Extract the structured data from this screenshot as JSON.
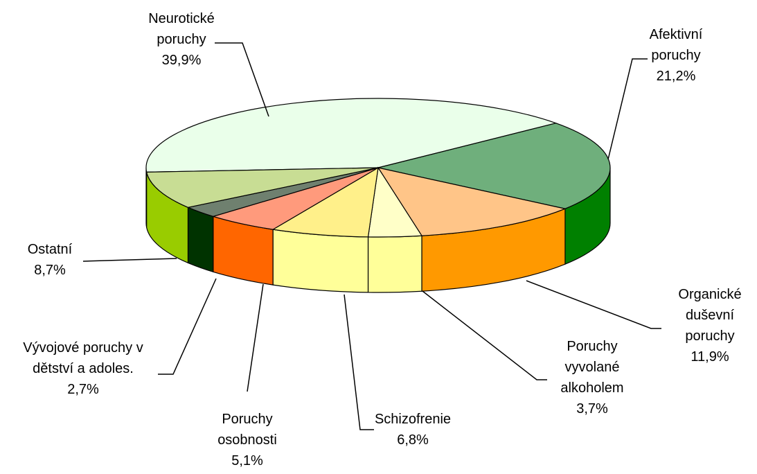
{
  "chart_data": {
    "type": "pie3d",
    "categories": [
      "Neurotické poruchy",
      "Afektivní poruchy",
      "Organické duševní poruchy",
      "Poruchy vyvolané alkoholem",
      "Schizofrenie",
      "Poruchy osobnosti",
      "Vývojové poruchy v dětství a adoles.",
      "Ostatní"
    ],
    "values": [
      39.9,
      21.2,
      11.9,
      3.7,
      6.8,
      5.1,
      2.7,
      8.7
    ],
    "value_labels": [
      "39,9%",
      "21,2%",
      "11,9%",
      "3,7%",
      "6,8%",
      "5,1%",
      "2,7%",
      "8,7%"
    ],
    "colors": [
      "#eaffea",
      "#6faf7c",
      "#ffc588",
      "#ffffc8",
      "#fff08a",
      "#ff9a7c",
      "#6f806f",
      "#c8dd94"
    ],
    "side_colors": [
      "#ffffff",
      "#008000",
      "#ff9900",
      "#ffff99",
      "#ffff99",
      "#ff6600",
      "#003300",
      "#99cc00"
    ]
  }
}
